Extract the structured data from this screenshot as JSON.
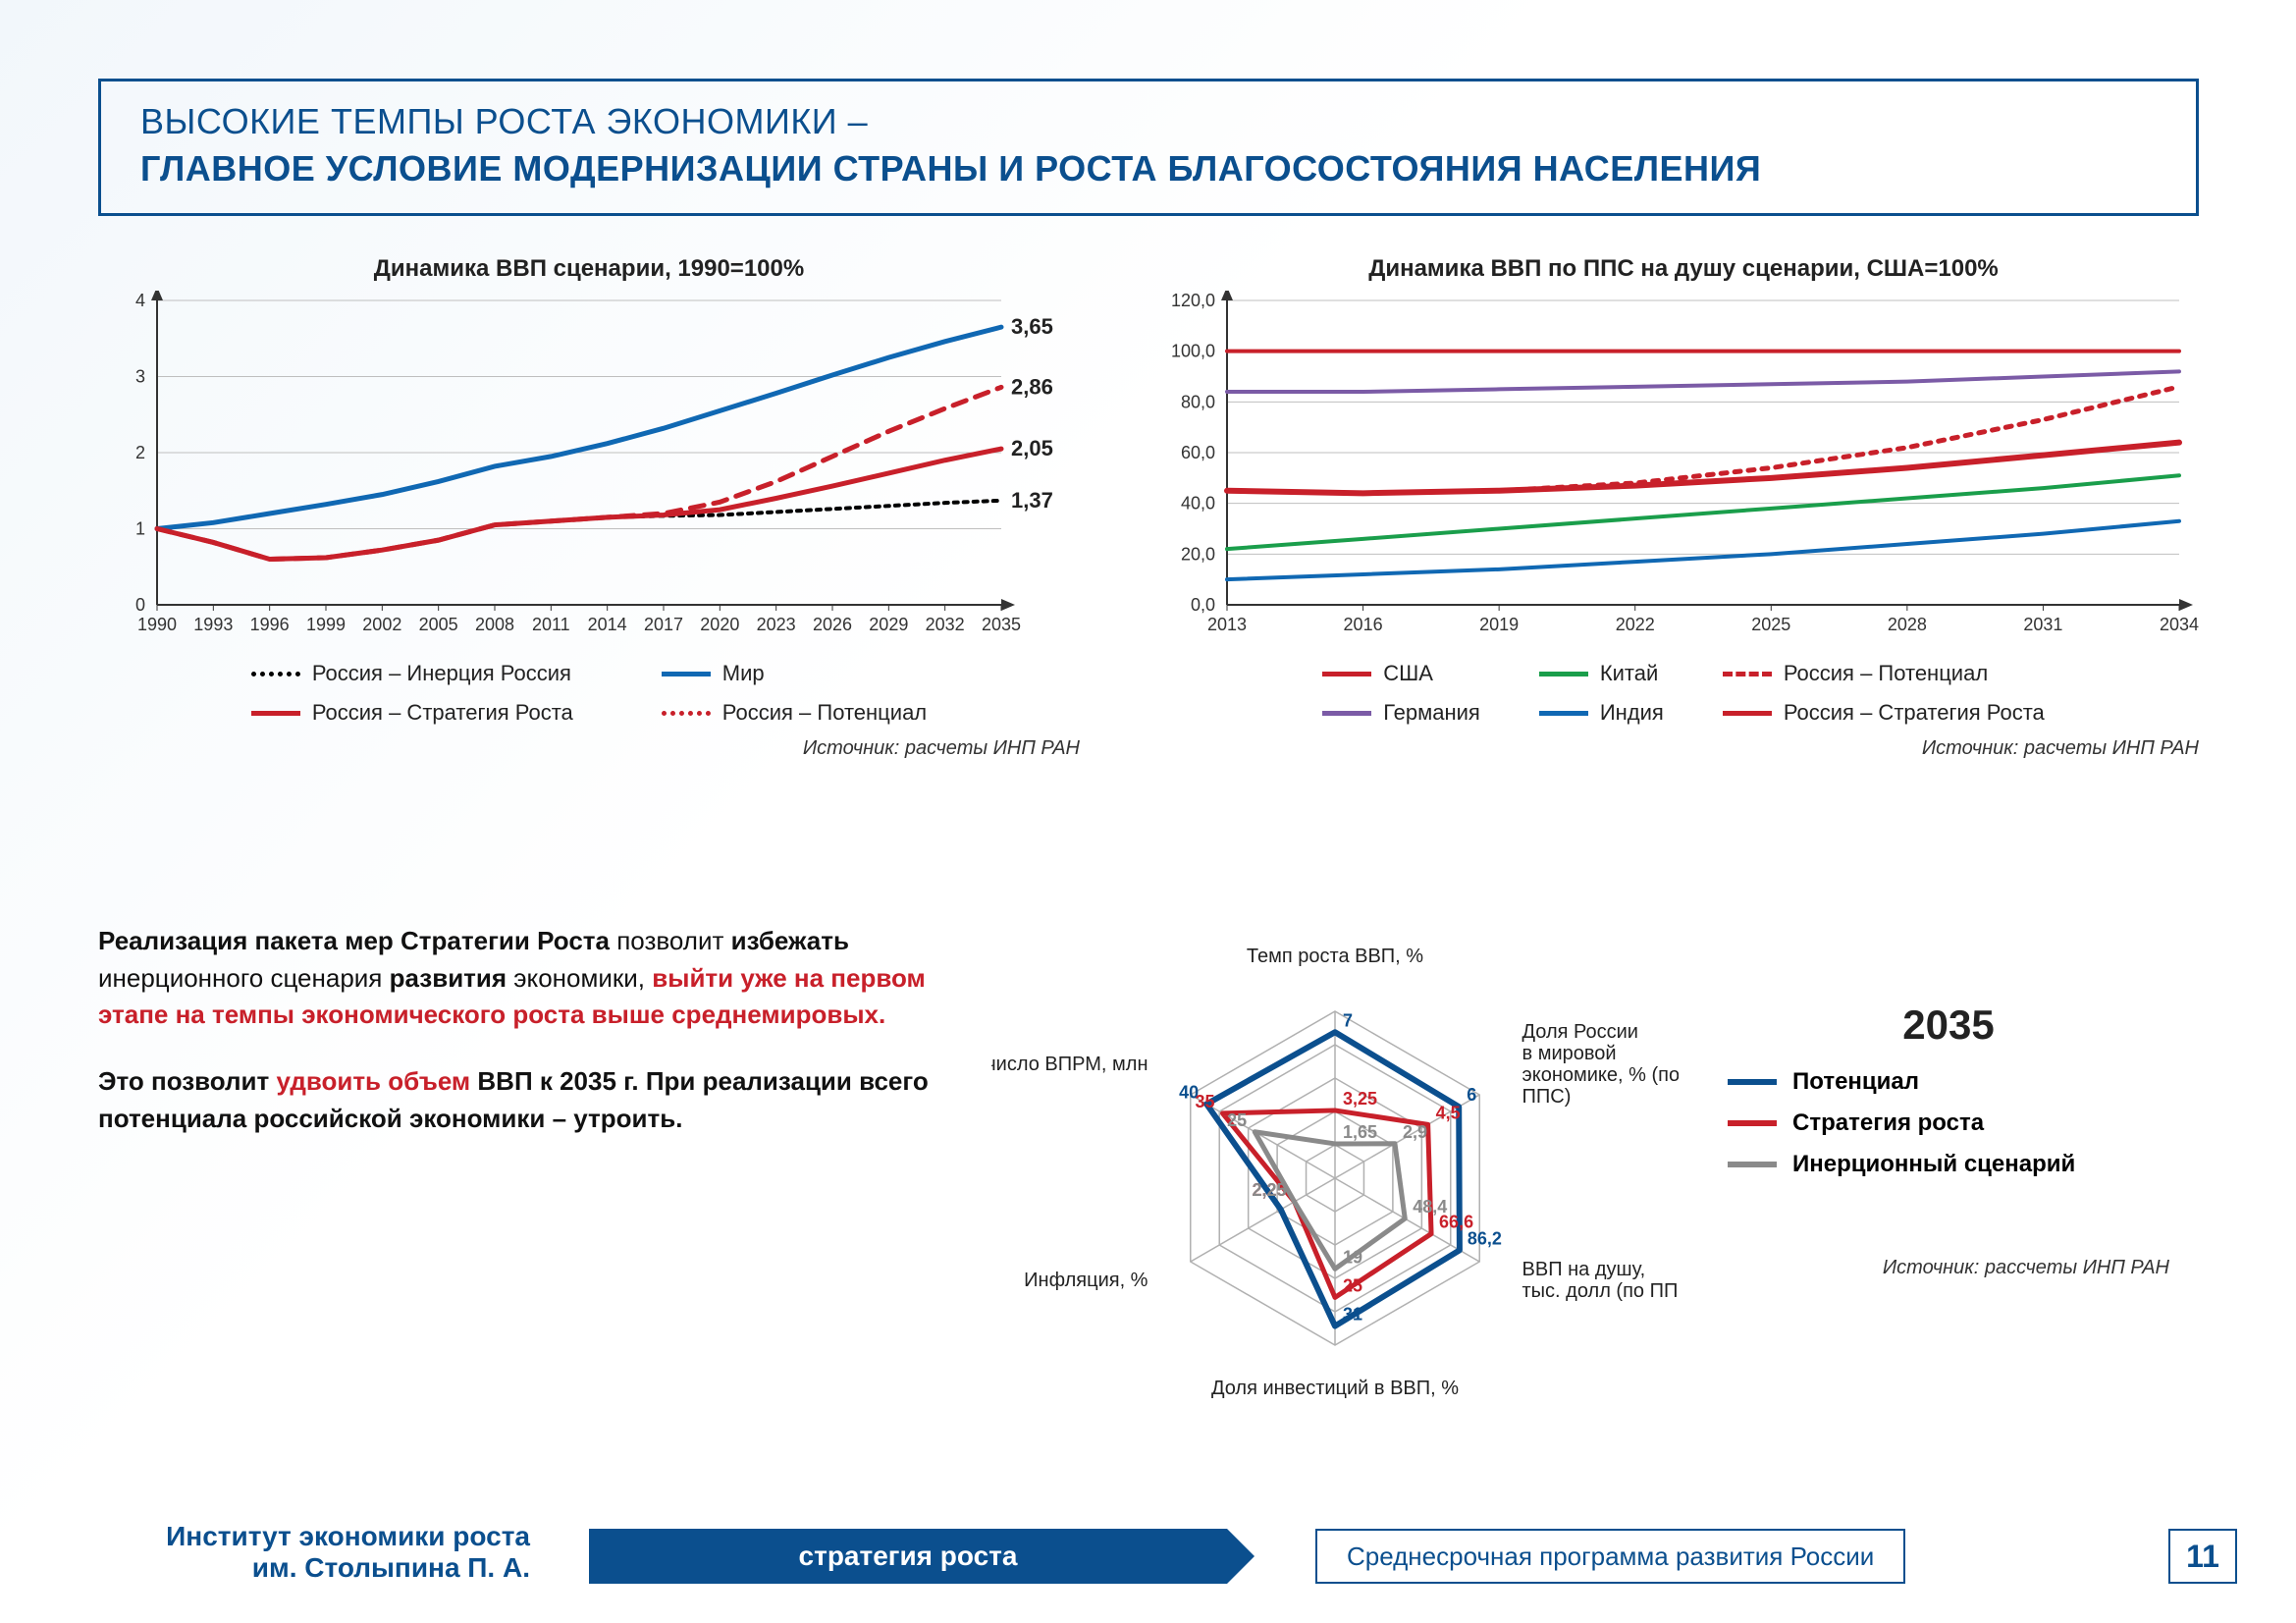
{
  "header": {
    "line1": "ВЫСОКИЕ ТЕМПЫ РОСТА ЭКОНОМИКИ –",
    "line2": "ГЛАВНОЕ УСЛОВИЕ МОДЕРНИЗАЦИИ СТРАНЫ И РОСТА БЛАГОСОСТОЯНИЯ НАСЕЛЕНИЯ"
  },
  "chart1": {
    "type": "line",
    "title": "Динамика ВВП сценарии, 1990=100%",
    "x_labels": [
      "1990",
      "1993",
      "1996",
      "1999",
      "2002",
      "2005",
      "2008",
      "2011",
      "2014",
      "2017",
      "2020",
      "2023",
      "2026",
      "2029",
      "2032",
      "2035"
    ],
    "ylim": [
      0,
      4
    ],
    "ytick_step": 1,
    "series": [
      {
        "name": "Россия – Инерция Россия",
        "color": "#000000",
        "dash": "4,6",
        "width": 4,
        "y_end_label": "1,37",
        "y": [
          1,
          0.82,
          0.6,
          0.62,
          0.72,
          0.85,
          1.05,
          1.1,
          1.15,
          1.17,
          1.18,
          1.22,
          1.26,
          1.3,
          1.34,
          1.37
        ]
      },
      {
        "name": "Мир",
        "color": "#1068b3",
        "dash": "",
        "width": 5,
        "y_end_label": "3,65",
        "y": [
          1,
          1.08,
          1.2,
          1.32,
          1.45,
          1.62,
          1.82,
          1.95,
          2.12,
          2.32,
          2.55,
          2.78,
          3.02,
          3.25,
          3.46,
          3.65
        ]
      },
      {
        "name": "Россия – Стратегия Роста",
        "color": "#c8202a",
        "dash": "",
        "width": 5,
        "y_end_label": "2,05",
        "y": [
          1,
          0.82,
          0.6,
          0.62,
          0.72,
          0.85,
          1.05,
          1.1,
          1.15,
          1.18,
          1.25,
          1.4,
          1.56,
          1.73,
          1.9,
          2.05
        ]
      },
      {
        "name": "Россия – Потенциал",
        "color": "#c8202a",
        "dash": "14,10",
        "width": 5,
        "y_end_label": "2,86",
        "y": [
          1,
          0.82,
          0.6,
          0.62,
          0.72,
          0.85,
          1.05,
          1.1,
          1.15,
          1.2,
          1.35,
          1.62,
          1.95,
          2.28,
          2.58,
          2.86
        ]
      }
    ],
    "source": "Источник: расчеты ИНП РАН",
    "axis_color": "#333",
    "grid_color": "#bfbfbf",
    "bg": "#ffffff"
  },
  "chart2": {
    "type": "line",
    "title": "Динамика ВВП по ППС на душу сценарии, США=100%",
    "x_labels": [
      "2013",
      "2016",
      "2019",
      "2022",
      "2025",
      "2028",
      "2031",
      "2034"
    ],
    "ylim": [
      0,
      120
    ],
    "ytick_step": 20,
    "y_format": ",0",
    "series": [
      {
        "name": "США",
        "color": "#c8202a",
        "dash": "",
        "width": 4,
        "y": [
          100,
          100,
          100,
          100,
          100,
          100,
          100,
          100
        ]
      },
      {
        "name": "Германия",
        "color": "#7b5ba6",
        "dash": "",
        "width": 4,
        "y": [
          84,
          84,
          85,
          86,
          87,
          88,
          90,
          92
        ]
      },
      {
        "name": "Китай",
        "color": "#1a9e4b",
        "dash": "",
        "width": 4,
        "y": [
          22,
          26,
          30,
          34,
          38,
          42,
          46,
          51
        ]
      },
      {
        "name": "Индия",
        "color": "#1068b3",
        "dash": "",
        "width": 4,
        "y": [
          10,
          12,
          14,
          17,
          20,
          24,
          28,
          33
        ]
      },
      {
        "name": "Россия – Потенциал",
        "color": "#c8202a",
        "dash": "6,8",
        "width": 5,
        "y": [
          45,
          44,
          45,
          48,
          54,
          62,
          73,
          86
        ]
      },
      {
        "name": "Россия – Стратегия Роста",
        "color": "#c8202a",
        "dash": "",
        "width": 6,
        "y": [
          45,
          44,
          45,
          47,
          50,
          54,
          59,
          64
        ]
      }
    ],
    "source": "Источник: расчеты ИНП РАН",
    "axis_color": "#333",
    "grid_color": "#bfbfbf",
    "bg": "#ffffff"
  },
  "body": {
    "p1_a": "Реализация пакета мер Стратегии Роста ",
    "p1_b": "позволит ",
    "p1_c": "избежать",
    "p1_d": " инерционного сценария ",
    "p1_e": "развития",
    "p1_f": " экономики, ",
    "p1_g": "выйти уже на первом этапе на темпы экономического роста выше среднемировых.",
    "p2_a": "Это позволит ",
    "p2_b": "удвоить объем",
    "p2_c": " ВВП к 2035 г. При реализации всего потенциала российской экономики – утроить."
  },
  "radar": {
    "type": "radar",
    "year": "2035",
    "axes": [
      {
        "label": "Темп роста ВВП, %",
        "max": 8
      },
      {
        "label": "Доля России\nв мировой\nэкономике, % (по\nППС)",
        "max": 7
      },
      {
        "label": "ВВП на душу,\nтыс. долл (по ППС)",
        "max": 100
      },
      {
        "label": "Доля инвестиций в ВВП, %",
        "max": 35
      },
      {
        "label": "Инфляция, %",
        "max": 8
      },
      {
        "label": "число ВПРМ, млн",
        "max": 45
      }
    ],
    "rings": 5,
    "series": [
      {
        "name": "Потенциал",
        "color": "#0b4f8e",
        "width": 6,
        "values": [
          7,
          6,
          86.2,
          31,
          3,
          40
        ],
        "value_labels": [
          "7",
          "6",
          "86,2",
          "31",
          "",
          "40"
        ]
      },
      {
        "name": "Стратегия роста",
        "color": "#c8202a",
        "width": 5,
        "values": [
          3.25,
          4.5,
          66.6,
          25,
          2.25,
          35
        ],
        "value_labels": [
          "3,25",
          "4,5",
          "66,6",
          "25",
          "2,25",
          "35"
        ]
      },
      {
        "name": "Инерционный сценарий",
        "color": "#8a8a8a",
        "width": 5,
        "values": [
          1.65,
          2.9,
          48.4,
          19,
          2.25,
          25
        ],
        "value_labels": [
          "1,65",
          "2,9",
          "48,4",
          "19",
          "2,25",
          "25"
        ]
      }
    ],
    "grid_color": "#b0b0b0",
    "source": "Источник: рассчеты ИНП РАН"
  },
  "footer": {
    "institute_l1": "Институт экономики роста",
    "institute_l2": "им. Столыпина П. А.",
    "banner": "стратегия роста",
    "subtitle": "Среднесрочная программа развития России",
    "page": "11"
  }
}
